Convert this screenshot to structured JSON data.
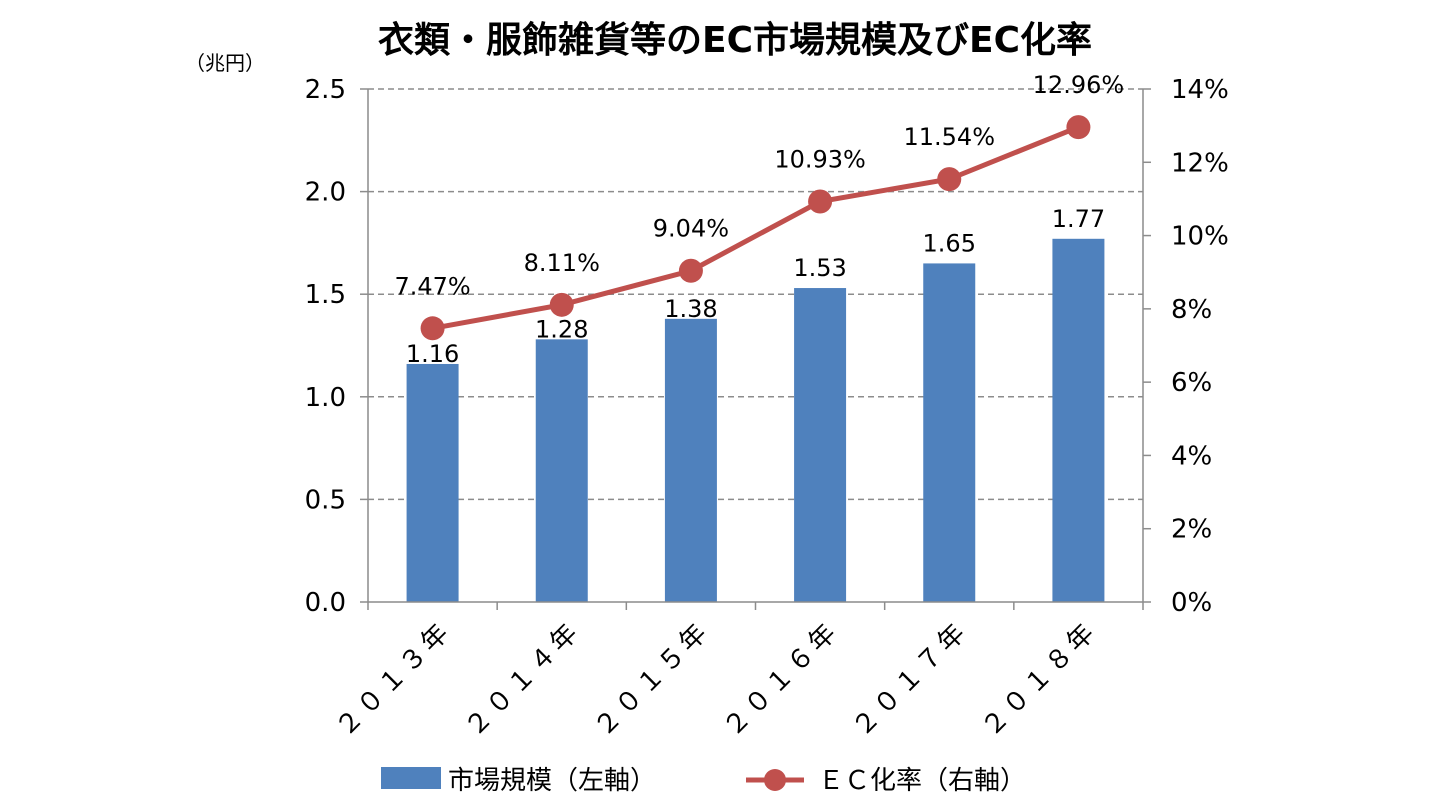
{
  "chart_data": {
    "type": "bar+line",
    "title": "衣類・服飾雑貨等のEC市場規模及びEC化率",
    "left_axis_unit": "（兆円）",
    "categories": [
      "２０１３年",
      "２０１４年",
      "２０１５年",
      "２０１６年",
      "２０１７年",
      "２０１８年"
    ],
    "series": [
      {
        "name": "市場規模（左軸）",
        "type": "bar",
        "axis": "left",
        "values": [
          1.16,
          1.28,
          1.38,
          1.53,
          1.65,
          1.77
        ],
        "labels": [
          "1.16",
          "1.28",
          "1.38",
          "1.53",
          "1.65",
          "1.77"
        ],
        "color": "#4F81BD"
      },
      {
        "name": "ＥＣ化率（右軸）",
        "type": "line",
        "axis": "right",
        "values": [
          7.47,
          8.11,
          9.04,
          10.93,
          11.54,
          12.96
        ],
        "labels": [
          "7.47%",
          "8.11%",
          "9.04%",
          "10.93%",
          "11.54%",
          "12.96%"
        ],
        "color": "#C0504D"
      }
    ],
    "ylim_left": [
      0,
      2.5
    ],
    "yticks_left": [
      "0.0",
      "0.5",
      "1.0",
      "1.5",
      "2.0",
      "2.5"
    ],
    "ylim_right": [
      0,
      14
    ],
    "yticks_right": [
      "0%",
      "2%",
      "4%",
      "6%",
      "8%",
      "10%",
      "12%",
      "14%"
    ],
    "grid": "dashed horizontal",
    "legend": "bottom"
  }
}
